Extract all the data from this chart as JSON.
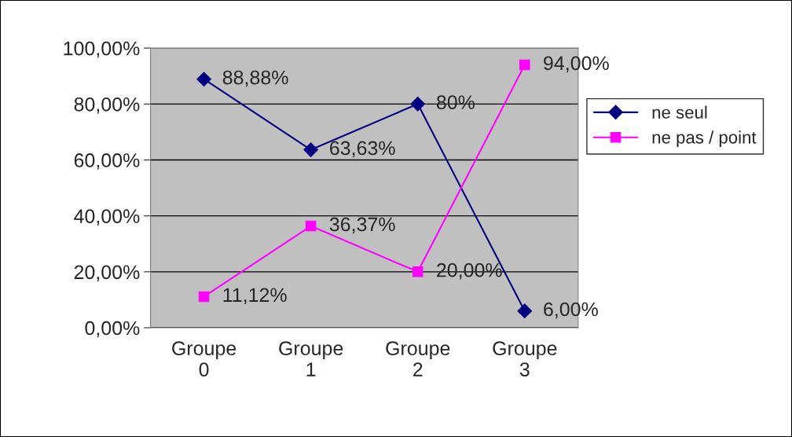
{
  "chart_data": {
    "type": "line",
    "categories": [
      "Groupe 0",
      "Groupe 1",
      "Groupe 2",
      "Groupe 3"
    ],
    "series": [
      {
        "name": "ne seul",
        "color": "#000080",
        "marker": "diamond",
        "values": [
          88.88,
          63.63,
          80,
          6.0
        ],
        "value_labels": [
          "88,88%",
          "63,63%",
          "80%",
          "6,00%"
        ]
      },
      {
        "name": "ne pas / point",
        "color": "#ff00ff",
        "marker": "square",
        "values": [
          11.12,
          36.37,
          20.0,
          94.0
        ],
        "value_labels": [
          "11,12%",
          "36,37%",
          "20,00%",
          "94,00%"
        ]
      }
    ],
    "ylim": [
      0,
      100
    ],
    "yticks": [
      {
        "value": 0,
        "label": "0,00%"
      },
      {
        "value": 20,
        "label": "20,00%"
      },
      {
        "value": 40,
        "label": "40,00%"
      },
      {
        "value": 60,
        "label": "60,00%"
      },
      {
        "value": 80,
        "label": "80,00%"
      },
      {
        "value": 100,
        "label": "100,00%"
      }
    ],
    "grid": "y",
    "legend": "right",
    "line_style": "solid"
  }
}
